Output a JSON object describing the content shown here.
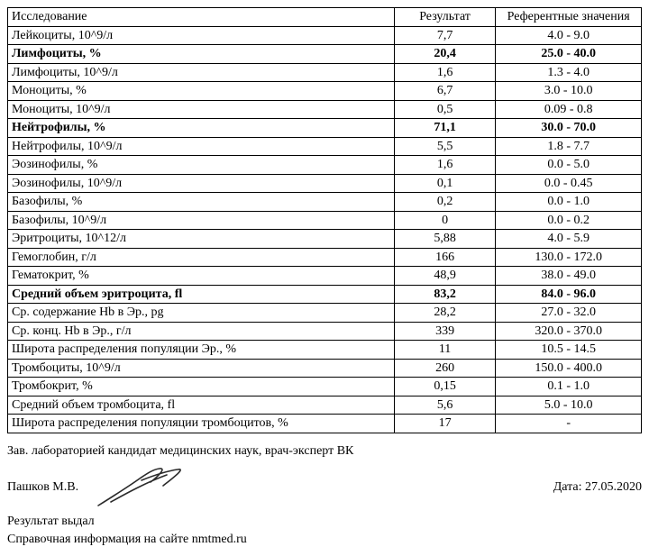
{
  "table": {
    "columns": [
      "Исследование",
      "Результат",
      "Референтные значения"
    ],
    "column_align": [
      "left",
      "center",
      "center"
    ],
    "column_widths_pct": [
      61,
      16,
      23
    ],
    "border_color": "#000000",
    "background_color": "#ffffff",
    "font_family": "Times New Roman",
    "font_size_pt": 10.5,
    "rows": [
      {
        "name": "Лейкоциты, 10^9/л",
        "result": "7,7",
        "ref": "4.0 - 9.0",
        "bold": false
      },
      {
        "name": "Лимфоциты, %",
        "result": "20,4",
        "ref": "25.0 - 40.0",
        "bold": true
      },
      {
        "name": "Лимфоциты, 10^9/л",
        "result": "1,6",
        "ref": "1.3 - 4.0",
        "bold": false
      },
      {
        "name": "Моноциты, %",
        "result": "6,7",
        "ref": "3.0 - 10.0",
        "bold": false
      },
      {
        "name": "Моноциты, 10^9/л",
        "result": "0,5",
        "ref": "0.09 - 0.8",
        "bold": false
      },
      {
        "name": "Нейтрофилы, %",
        "result": "71,1",
        "ref": "30.0 - 70.0",
        "bold": true
      },
      {
        "name": "Нейтрофилы, 10^9/л",
        "result": "5,5",
        "ref": "1.8 - 7.7",
        "bold": false
      },
      {
        "name": "Эозинофилы, %",
        "result": "1,6",
        "ref": "0.0 - 5.0",
        "bold": false
      },
      {
        "name": "Эозинофилы, 10^9/л",
        "result": "0,1",
        "ref": "0.0 - 0.45",
        "bold": false
      },
      {
        "name": "Базофилы, %",
        "result": "0,2",
        "ref": "0.0 - 1.0",
        "bold": false
      },
      {
        "name": "Базофилы, 10^9/л",
        "result": "0",
        "ref": "0.0 - 0.2",
        "bold": false
      },
      {
        "name": "Эритроциты, 10^12/л",
        "result": "5,88",
        "ref": "4.0 - 5.9",
        "bold": false
      },
      {
        "name": "Гемоглобин, г/л",
        "result": "166",
        "ref": "130.0 - 172.0",
        "bold": false
      },
      {
        "name": "Гематокрит, %",
        "result": "48,9",
        "ref": "38.0 - 49.0",
        "bold": false
      },
      {
        "name": "Средний объем эритроцита, fl",
        "result": "83,2",
        "ref": "84.0 - 96.0",
        "bold": true
      },
      {
        "name": "Ср. содержание Hb в Эр., pg",
        "result": "28,2",
        "ref": "27.0 - 32.0",
        "bold": false
      },
      {
        "name": "Ср. конц. Hb в Эр., г/л",
        "result": "339",
        "ref": "320.0 - 370.0",
        "bold": false
      },
      {
        "name": "Широта распределения популяции Эр., %",
        "result": "11",
        "ref": "10.5 - 14.5",
        "bold": false
      },
      {
        "name": "Тромбоциты, 10^9/л",
        "result": "260",
        "ref": "150.0 - 400.0",
        "bold": false
      },
      {
        "name": "Тромбокрит, %",
        "result": "0,15",
        "ref": "0.1 - 1.0",
        "bold": false
      },
      {
        "name": "Средний объем тромбоцита, fl",
        "result": "5,6",
        "ref": "5.0 - 10.0",
        "bold": false
      },
      {
        "name": "Широта распределения популяции тромбоцитов, %",
        "result": "17",
        "ref": "-",
        "bold": false
      }
    ]
  },
  "footer": {
    "supervisor_line": "Зав. лабораторией кандидат медицинских наук, врач-эксперт ВК",
    "signer_name": "Пашков М.В.",
    "date_label": "Дата: 27.05.2020",
    "issued_label": "Результат выдал",
    "reference_label": "Справочная информация на сайте nmtmed.ru",
    "signature_stroke_color": "#2a2a2a",
    "signature_stroke_width": 1.6
  }
}
